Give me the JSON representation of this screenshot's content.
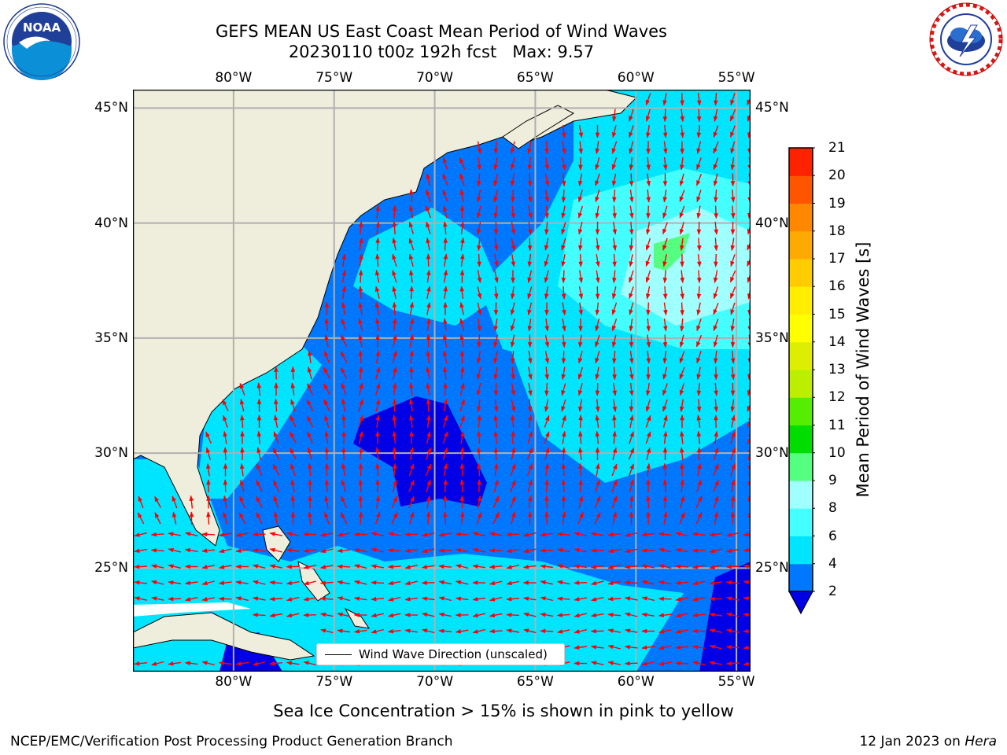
{
  "title": {
    "line1": "GEFS MEAN US East Coast Mean Period of Wind Waves",
    "line2": "20230110 t00z 192h fcst   Max: 9.57"
  },
  "logos": {
    "left": {
      "name": "NOAA",
      "ring_text": "NATIONAL OCEANIC AND ATMOSPHERIC ADMINISTRATION · U.S. DEPARTMENT OF COMMERCE"
    },
    "right": {
      "ring_text": "NATIONAL WEATHER SERVICE"
    }
  },
  "map": {
    "lon_labels": [
      "80°W",
      "75°W",
      "70°W",
      "65°W",
      "60°W",
      "55°W"
    ],
    "lat_labels": [
      "45°N",
      "40°N",
      "35°N",
      "30°N",
      "25°N"
    ],
    "lon_values": [
      -80,
      -75,
      -70,
      -65,
      -60,
      -55
    ],
    "lat_values": [
      45,
      40,
      35,
      30,
      25
    ],
    "extent": {
      "lon": [
        -85,
        -54.3
      ],
      "lat": [
        20.5,
        45.8
      ]
    },
    "land_color": "#efeddc",
    "grid_color": "#b0b0b0",
    "vector_color": "#ff0000",
    "legend_text": "Wind Wave Direction (unscaled)"
  },
  "colorbar": {
    "label": "Mean Period of Wind Waves [s]",
    "ticks": [
      "2",
      "4",
      "6",
      "8",
      "9",
      "10",
      "11",
      "12",
      "13",
      "14",
      "15",
      "16",
      "17",
      "18",
      "19",
      "20",
      "21"
    ],
    "colors": [
      "#0077ff",
      "#00e5ff",
      "#44ffff",
      "#a0ffff",
      "#55ff80",
      "#00dd00",
      "#55ee00",
      "#bbee00",
      "#ddee00",
      "#ffff00",
      "#ffee00",
      "#ffcc00",
      "#ffaa00",
      "#ff8800",
      "#ff5500",
      "#ff2200"
    ],
    "under_color": "#0000e6"
  },
  "note": "Sea Ice Concentration > 15% is shown in pink to yellow",
  "footer": {
    "left": "NCEP/EMC/Verification Post Processing Product Generation Branch",
    "date": "12 Jan 2023 on ",
    "host": "Hera"
  }
}
